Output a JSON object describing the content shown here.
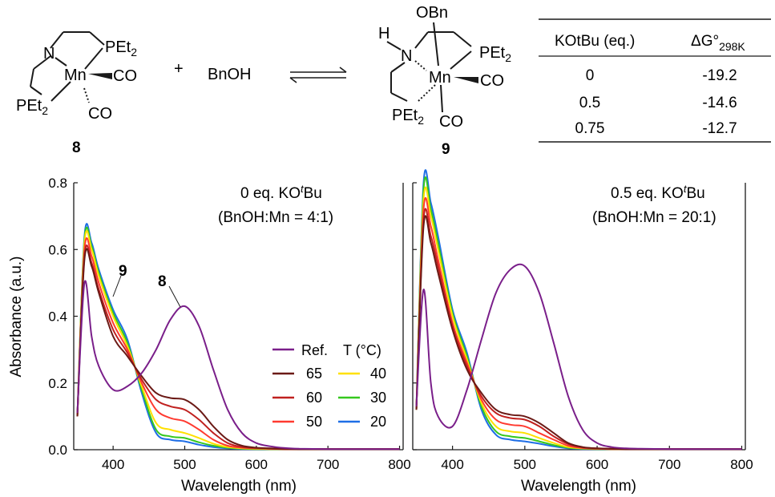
{
  "scheme": {
    "compound8": {
      "labels": [
        "N",
        "PEt",
        "2",
        "Mn",
        "CO",
        "PEt",
        "2",
        "CO"
      ],
      "number": "8"
    },
    "plus": "+",
    "reagent": "BnOH",
    "compound9": {
      "labels": [
        "OBn",
        "H",
        "N",
        "PEt",
        "2",
        "Mn",
        "CO",
        "PEt",
        "2",
        "CO"
      ],
      "number": "9"
    }
  },
  "table": {
    "headers": [
      "KOtBu (eq.)",
      "ΔG°",
      "298K"
    ],
    "rows": [
      {
        "koTBu": "0",
        "dG": "-19.2"
      },
      {
        "koTBu": "0.5",
        "dG": "-14.6"
      },
      {
        "koTBu": "0.75",
        "dG": "-12.7"
      }
    ]
  },
  "legend": {
    "ref": "Ref.",
    "temp_header": "T (°C)",
    "items": [
      {
        "label": "65",
        "color": "#6b1a16"
      },
      {
        "label": "40",
        "color": "#ffe000"
      },
      {
        "label": "60",
        "color": "#c0211f"
      },
      {
        "label": "30",
        "color": "#35c81e"
      },
      {
        "label": "50",
        "color": "#ff3a30"
      },
      {
        "label": "20",
        "color": "#1e6ee6"
      }
    ],
    "ref_color": "#7a1f8a"
  },
  "chart_data": [
    {
      "type": "line",
      "annotation_line1": "0 eq. KO",
      "annotation_t": "t",
      "annotation_bu": "Bu",
      "annotation_line2": "(BnOH:Mn = 4:1)",
      "peak_labels": [
        "9",
        "8"
      ],
      "ylabel": "Absorbance (a.u.)",
      "xlabel": "Wavelength (nm)",
      "xlim": [
        345,
        805
      ],
      "ylim": [
        0,
        0.8
      ],
      "x_ticks": [
        "400",
        "500",
        "600",
        "700",
        "800"
      ],
      "y_ticks": [
        "0.0",
        "0.2",
        "0.4",
        "0.6",
        "0.8"
      ],
      "x": [
        350,
        360,
        370,
        380,
        400,
        420,
        440,
        460,
        480,
        500,
        520,
        540,
        560,
        580,
        600,
        620,
        640,
        660,
        700,
        750,
        800
      ],
      "series": [
        {
          "name": "Ref.",
          "color": "#7a1f8a",
          "values": [
            0.11,
            0.5,
            0.34,
            0.25,
            0.18,
            0.19,
            0.23,
            0.3,
            0.39,
            0.43,
            0.37,
            0.24,
            0.12,
            0.05,
            0.02,
            0.01,
            0.005,
            0.003,
            0.002,
            0.002,
            0.002
          ]
        },
        {
          "name": "65",
          "color": "#6b1a16",
          "values": [
            0.1,
            0.57,
            0.55,
            0.47,
            0.34,
            0.28,
            0.22,
            0.17,
            0.155,
            0.15,
            0.12,
            0.07,
            0.03,
            0.012,
            0.006,
            0.004,
            0.003,
            0.002,
            0.002,
            0.002,
            0.002
          ]
        },
        {
          "name": "60",
          "color": "#c0211f",
          "values": [
            0.1,
            0.58,
            0.56,
            0.48,
            0.36,
            0.29,
            0.21,
            0.15,
            0.13,
            0.12,
            0.09,
            0.05,
            0.02,
            0.008,
            0.005,
            0.003,
            0.002,
            0.002,
            0.002,
            0.002,
            0.002
          ]
        },
        {
          "name": "50",
          "color": "#ff3a30",
          "values": [
            0.1,
            0.6,
            0.58,
            0.5,
            0.38,
            0.3,
            0.2,
            0.12,
            0.095,
            0.085,
            0.06,
            0.03,
            0.012,
            0.006,
            0.004,
            0.003,
            0.002,
            0.002,
            0.002,
            0.002,
            0.002
          ]
        },
        {
          "name": "40",
          "color": "#ffe000",
          "values": [
            0.1,
            0.62,
            0.6,
            0.52,
            0.4,
            0.31,
            0.19,
            0.08,
            0.06,
            0.05,
            0.035,
            0.018,
            0.008,
            0.004,
            0.003,
            0.002,
            0.002,
            0.002,
            0.002,
            0.002,
            0.002
          ]
        },
        {
          "name": "30",
          "color": "#35c81e",
          "values": [
            0.1,
            0.63,
            0.61,
            0.53,
            0.41,
            0.32,
            0.18,
            0.06,
            0.04,
            0.035,
            0.022,
            0.012,
            0.006,
            0.003,
            0.002,
            0.002,
            0.002,
            0.002,
            0.002,
            0.002,
            0.002
          ]
        },
        {
          "name": "20",
          "color": "#1e6ee6",
          "values": [
            0.1,
            0.64,
            0.62,
            0.54,
            0.42,
            0.33,
            0.17,
            0.05,
            0.03,
            0.025,
            0.015,
            0.008,
            0.004,
            0.002,
            0.002,
            0.002,
            0.002,
            0.002,
            0.002,
            0.002,
            0.002
          ]
        }
      ]
    },
    {
      "type": "line",
      "annotation_line1": "0.5 eq. KO",
      "annotation_t": "t",
      "annotation_bu": "Bu",
      "annotation_line2": "(BnOH:Mn = 20:1)",
      "xlabel": "Wavelength (nm)",
      "xlim": [
        345,
        805
      ],
      "ylim": [
        0,
        0.8
      ],
      "x_ticks": [
        "400",
        "500",
        "600",
        "700",
        "800"
      ],
      "x": [
        350,
        360,
        370,
        380,
        400,
        420,
        440,
        460,
        480,
        500,
        520,
        540,
        560,
        580,
        600,
        620,
        640,
        660,
        700,
        750,
        800
      ],
      "series": [
        {
          "name": "Ref.",
          "color": "#7a1f8a",
          "values": [
            0.13,
            0.48,
            0.2,
            0.1,
            0.07,
            0.18,
            0.33,
            0.47,
            0.54,
            0.55,
            0.47,
            0.32,
            0.16,
            0.06,
            0.02,
            0.008,
            0.004,
            0.003,
            0.002,
            0.002,
            0.002
          ]
        },
        {
          "name": "65",
          "color": "#6b1a16",
          "values": [
            0.12,
            0.67,
            0.62,
            0.53,
            0.36,
            0.24,
            0.17,
            0.12,
            0.105,
            0.1,
            0.08,
            0.05,
            0.02,
            0.008,
            0.004,
            0.003,
            0.002,
            0.002,
            0.002,
            0.002,
            0.002
          ]
        },
        {
          "name": "60",
          "color": "#c0211f",
          "values": [
            0.12,
            0.69,
            0.64,
            0.55,
            0.37,
            0.25,
            0.16,
            0.11,
            0.095,
            0.09,
            0.07,
            0.04,
            0.017,
            0.007,
            0.004,
            0.003,
            0.002,
            0.002,
            0.002,
            0.002,
            0.002
          ]
        },
        {
          "name": "50",
          "color": "#ff3a30",
          "values": [
            0.12,
            0.72,
            0.67,
            0.57,
            0.38,
            0.26,
            0.15,
            0.09,
            0.075,
            0.07,
            0.05,
            0.03,
            0.012,
            0.005,
            0.003,
            0.002,
            0.002,
            0.002,
            0.002,
            0.002,
            0.002
          ]
        },
        {
          "name": "40",
          "color": "#ffe000",
          "values": [
            0.12,
            0.75,
            0.7,
            0.6,
            0.4,
            0.27,
            0.14,
            0.07,
            0.055,
            0.05,
            0.035,
            0.02,
            0.008,
            0.004,
            0.003,
            0.002,
            0.002,
            0.002,
            0.002,
            0.002,
            0.002
          ]
        },
        {
          "name": "30",
          "color": "#35c81e",
          "values": [
            0.12,
            0.78,
            0.72,
            0.62,
            0.41,
            0.28,
            0.13,
            0.055,
            0.04,
            0.035,
            0.025,
            0.014,
            0.006,
            0.003,
            0.002,
            0.002,
            0.002,
            0.002,
            0.002,
            0.002,
            0.002
          ]
        },
        {
          "name": "20",
          "color": "#1e6ee6",
          "values": [
            0.12,
            0.8,
            0.74,
            0.64,
            0.42,
            0.29,
            0.12,
            0.045,
            0.03,
            0.025,
            0.018,
            0.01,
            0.004,
            0.002,
            0.002,
            0.002,
            0.002,
            0.002,
            0.002,
            0.002,
            0.002
          ]
        }
      ]
    }
  ]
}
